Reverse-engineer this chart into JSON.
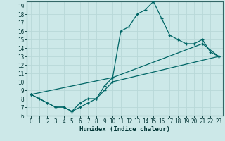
{
  "xlabel": "Humidex (Indice chaleur)",
  "bg_color": "#cce8e8",
  "line_color": "#006666",
  "grid_color": "#b8d8d8",
  "xlim": [
    -0.5,
    23.5
  ],
  "ylim": [
    6,
    19.5
  ],
  "xticks": [
    0,
    1,
    2,
    3,
    4,
    5,
    6,
    7,
    8,
    9,
    10,
    11,
    12,
    13,
    14,
    15,
    16,
    17,
    18,
    19,
    20,
    21,
    22,
    23
  ],
  "yticks": [
    6,
    7,
    8,
    9,
    10,
    11,
    12,
    13,
    14,
    15,
    16,
    17,
    18,
    19
  ],
  "line1_x": [
    0,
    1,
    2,
    3,
    4,
    5,
    6,
    7,
    8,
    9,
    10,
    11,
    12,
    13,
    14,
    15,
    16,
    17,
    18,
    19,
    20,
    21,
    22,
    23
  ],
  "line1_y": [
    8.5,
    8.0,
    7.5,
    7.0,
    7.0,
    6.5,
    7.0,
    7.5,
    8.0,
    9.5,
    10.5,
    16.0,
    16.5,
    18.0,
    18.5,
    19.5,
    17.5,
    15.5,
    15.0,
    14.5,
    14.5,
    15.0,
    13.5,
    13.0
  ],
  "line2_x": [
    0,
    2,
    3,
    4,
    5,
    6,
    7,
    8,
    9,
    10,
    23
  ],
  "line2_y": [
    8.5,
    7.5,
    7.0,
    7.0,
    6.5,
    7.5,
    8.0,
    8.0,
    9.0,
    10.0,
    13.0
  ],
  "line3_x": [
    0,
    10,
    21,
    23
  ],
  "line3_y": [
    8.5,
    10.5,
    14.5,
    13.0
  ],
  "tick_fontsize": 5.5,
  "xlabel_fontsize": 6.5
}
